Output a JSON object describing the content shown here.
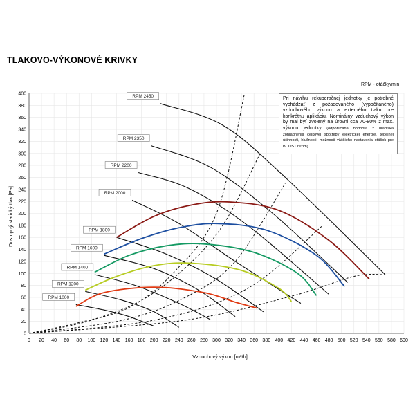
{
  "page": {
    "title": "TLAKOVO-VÝKONOVÉ KRIVKY"
  },
  "unit_note": "RPM - otáčky/min",
  "note": {
    "main": "Pri návrhu rekuperačnej jednotky je potrebné vychádzať z požadovaného (vypočítaného) vzduchového výkonu a externého tlaku pre konkrétnu aplikáciu. Nominálny vzduchový výkon by mal byť zvolený na úrovni cca 70-80% z max. výkonu jednotky",
    "small": "(odporúčaná hodnota z hľadiska zohľadnenia celkovej spotreby elektrickej energie, tepelnej účinnosti, hlučnosti, možnosti väčšieho nastavenia otáčok pre BOOST režim)."
  },
  "chart_data": {
    "type": "line",
    "title": "",
    "xlabel": "Vzduchový výkon [m³/h]",
    "ylabel": "Dostupný statický tlak [Pa]",
    "xlim": [
      0,
      600
    ],
    "ylim": [
      0,
      400
    ],
    "xticks": [
      0,
      20,
      40,
      60,
      80,
      100,
      120,
      140,
      160,
      180,
      200,
      220,
      240,
      260,
      280,
      300,
      320,
      340,
      360,
      380,
      400,
      420,
      440,
      460,
      480,
      500,
      520,
      540,
      560,
      580,
      600
    ],
    "yticks": [
      0,
      20,
      40,
      60,
      80,
      100,
      120,
      140,
      160,
      180,
      200,
      220,
      240,
      260,
      280,
      300,
      320,
      340,
      360,
      380,
      400
    ],
    "rpm_curves": [
      {
        "label": "RPM 1000",
        "points": [
          [
            75,
            48
          ],
          [
            120,
            39
          ],
          [
            160,
            28
          ],
          [
            200,
            12
          ]
        ]
      },
      {
        "label": "RPM 1200",
        "points": [
          [
            90,
            70
          ],
          [
            150,
            55
          ],
          [
            200,
            36
          ],
          [
            240,
            10
          ]
        ]
      },
      {
        "label": "RPM 1400",
        "points": [
          [
            105,
            98
          ],
          [
            170,
            80
          ],
          [
            240,
            50
          ],
          [
            290,
            23
          ]
        ]
      },
      {
        "label": "RPM 1600",
        "points": [
          [
            120,
            130
          ],
          [
            200,
            108
          ],
          [
            270,
            73
          ],
          [
            330,
            28
          ]
        ]
      },
      {
        "label": "RPM 1800",
        "points": [
          [
            140,
            160
          ],
          [
            220,
            132
          ],
          [
            300,
            90
          ],
          [
            375,
            36
          ]
        ]
      },
      {
        "label": "RPM 2000",
        "points": [
          [
            165,
            222
          ],
          [
            240,
            183
          ],
          [
            330,
            120
          ],
          [
            435,
            50
          ]
        ]
      },
      {
        "label": "RPM 2200",
        "points": [
          [
            175,
            268
          ],
          [
            255,
            242
          ],
          [
            350,
            180
          ],
          [
            480,
            65
          ]
        ]
      },
      {
        "label": "RPM 2350",
        "points": [
          [
            195,
            313
          ],
          [
            290,
            277
          ],
          [
            390,
            200
          ],
          [
            510,
            85
          ]
        ]
      },
      {
        "label": "RPM 2450",
        "points": [
          [
            210,
            383
          ],
          [
            310,
            347
          ],
          [
            410,
            260
          ],
          [
            570,
            98
          ]
        ]
      }
    ],
    "system_lines": [
      {
        "points": [
          [
            0,
            0
          ],
          [
            80,
            18
          ],
          [
            160,
            43
          ],
          [
            230,
            100
          ],
          [
            300,
            200
          ],
          [
            345,
            400
          ]
        ]
      },
      {
        "points": [
          [
            0,
            0
          ],
          [
            100,
            22
          ],
          [
            200,
            68
          ],
          [
            300,
            165
          ],
          [
            370,
            300
          ]
        ]
      },
      {
        "points": [
          [
            0,
            0
          ],
          [
            150,
            22
          ],
          [
            250,
            60
          ],
          [
            330,
            120
          ],
          [
            410,
            250
          ]
        ]
      },
      {
        "points": [
          [
            0,
            0
          ],
          [
            200,
            22
          ],
          [
            350,
            75
          ],
          [
            470,
            180
          ]
        ]
      },
      {
        "points": [
          [
            0,
            0
          ],
          [
            250,
            22
          ],
          [
            420,
            62
          ],
          [
            520,
            95
          ],
          [
            570,
            98
          ]
        ]
      }
    ],
    "series": [
      {
        "name": "",
        "color": "#e03a13",
        "points": [
          [
            75,
            45
          ],
          [
            120,
            68
          ],
          [
            200,
            77
          ],
          [
            280,
            68
          ],
          [
            330,
            52
          ],
          [
            365,
            42
          ]
        ]
      },
      {
        "name": "",
        "color": "#b7cc22",
        "points": [
          [
            90,
            72
          ],
          [
            140,
            95
          ],
          [
            200,
            113
          ],
          [
            260,
            117
          ],
          [
            340,
            105
          ],
          [
            400,
            75
          ],
          [
            420,
            53
          ]
        ]
      },
      {
        "name": "",
        "color": "#159a63",
        "points": [
          [
            105,
            102
          ],
          [
            160,
            130
          ],
          [
            220,
            146
          ],
          [
            280,
            149
          ],
          [
            360,
            135
          ],
          [
            430,
            100
          ],
          [
            460,
            63
          ]
        ]
      },
      {
        "name": "",
        "color": "#1c4ea0",
        "points": [
          [
            120,
            132
          ],
          [
            180,
            158
          ],
          [
            240,
            176
          ],
          [
            300,
            183
          ],
          [
            380,
            172
          ],
          [
            460,
            130
          ],
          [
            505,
            78
          ]
        ]
      },
      {
        "name": "",
        "color": "#8b1a15",
        "points": [
          [
            140,
            160
          ],
          [
            200,
            195
          ],
          [
            260,
            214
          ],
          [
            320,
            219
          ],
          [
            400,
            205
          ],
          [
            480,
            155
          ],
          [
            545,
            90
          ]
        ]
      }
    ]
  }
}
